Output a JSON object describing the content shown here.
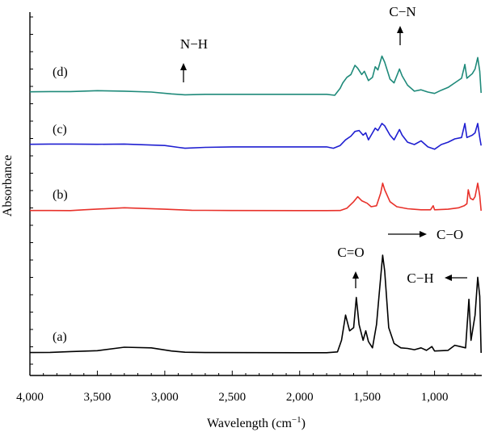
{
  "chart_data": {
    "type": "line",
    "title": "",
    "xlabel": "Wavelength (cm",
    "xlabel_sup": "−1",
    "xlabel_close": ")",
    "ylabel": "Absorbance",
    "xlim": [
      4000,
      650
    ],
    "x_reversed": true,
    "x_ticks": [
      {
        "value": 4000,
        "label": "4,000"
      },
      {
        "value": 3500,
        "label": "3,500"
      },
      {
        "value": 3000,
        "label": "3,000"
      },
      {
        "value": 2500,
        "label": "2,500"
      },
      {
        "value": 2000,
        "label": "2,000"
      },
      {
        "value": 1500,
        "label": "1,500"
      },
      {
        "value": 1000,
        "label": "1,000"
      }
    ],
    "y_ticks_labeled": false,
    "grid": false,
    "series": [
      {
        "label": "(a)",
        "color": "#000000",
        "points": [
          [
            4000,
            0.5
          ],
          [
            3850,
            0.8
          ],
          [
            3700,
            2
          ],
          [
            3500,
            3.5
          ],
          [
            3300,
            9
          ],
          [
            3100,
            8
          ],
          [
            2950,
            3
          ],
          [
            2850,
            1
          ],
          [
            2700,
            0.5
          ],
          [
            2000,
            0.3
          ],
          [
            1800,
            0.3
          ],
          [
            1720,
            1.5
          ],
          [
            1690,
            20
          ],
          [
            1660,
            60
          ],
          [
            1630,
            35
          ],
          [
            1600,
            40
          ],
          [
            1580,
            88
          ],
          [
            1560,
            45
          ],
          [
            1530,
            20
          ],
          [
            1510,
            35
          ],
          [
            1490,
            18
          ],
          [
            1460,
            8
          ],
          [
            1430,
            45
          ],
          [
            1410,
            95
          ],
          [
            1385,
            155
          ],
          [
            1370,
            130
          ],
          [
            1340,
            40
          ],
          [
            1300,
            15
          ],
          [
            1250,
            8
          ],
          [
            1200,
            7
          ],
          [
            1150,
            5
          ],
          [
            1100,
            8
          ],
          [
            1060,
            4
          ],
          [
            1020,
            10
          ],
          [
            1000,
            3
          ],
          [
            900,
            4
          ],
          [
            850,
            12
          ],
          [
            810,
            10
          ],
          [
            770,
            8
          ],
          [
            745,
            85
          ],
          [
            730,
            20
          ],
          [
            700,
            60
          ],
          [
            680,
            120
          ],
          [
            665,
            90
          ],
          [
            655,
            0
          ]
        ]
      },
      {
        "label": "(b)",
        "color": "#e8312a",
        "points": [
          [
            4000,
            0.5
          ],
          [
            3850,
            0.5
          ],
          [
            3700,
            0.3
          ],
          [
            3600,
            2
          ],
          [
            3300,
            6
          ],
          [
            3000,
            3
          ],
          [
            2800,
            1
          ],
          [
            2500,
            0.5
          ],
          [
            2000,
            0.3
          ],
          [
            1800,
            0.3
          ],
          [
            1700,
            0.5
          ],
          [
            1650,
            5
          ],
          [
            1600,
            18
          ],
          [
            1570,
            28
          ],
          [
            1540,
            20
          ],
          [
            1500,
            15
          ],
          [
            1470,
            8
          ],
          [
            1430,
            10
          ],
          [
            1400,
            35
          ],
          [
            1385,
            55
          ],
          [
            1370,
            42
          ],
          [
            1330,
            18
          ],
          [
            1280,
            8
          ],
          [
            1200,
            4
          ],
          [
            1100,
            2
          ],
          [
            1030,
            2
          ],
          [
            1010,
            10
          ],
          [
            1000,
            2
          ],
          [
            900,
            3
          ],
          [
            820,
            6
          ],
          [
            780,
            10
          ],
          [
            760,
            14
          ],
          [
            750,
            42
          ],
          [
            735,
            25
          ],
          [
            715,
            22
          ],
          [
            700,
            28
          ],
          [
            680,
            55
          ],
          [
            665,
            30
          ],
          [
            655,
            0
          ]
        ]
      },
      {
        "label": "(c)",
        "color": "#1f1fd1",
        "points": [
          [
            4000,
            0.5
          ],
          [
            3850,
            1
          ],
          [
            3700,
            1
          ],
          [
            3500,
            0.5
          ],
          [
            3300,
            1
          ],
          [
            3000,
            -2
          ],
          [
            2900,
            -6
          ],
          [
            2850,
            -8
          ],
          [
            2700,
            -6
          ],
          [
            2500,
            -5
          ],
          [
            2000,
            -5
          ],
          [
            1800,
            -5
          ],
          [
            1750,
            -8
          ],
          [
            1700,
            -2
          ],
          [
            1660,
            10
          ],
          [
            1620,
            18
          ],
          [
            1590,
            28
          ],
          [
            1560,
            30
          ],
          [
            1530,
            20
          ],
          [
            1510,
            25
          ],
          [
            1490,
            10
          ],
          [
            1470,
            20
          ],
          [
            1440,
            35
          ],
          [
            1420,
            30
          ],
          [
            1390,
            45
          ],
          [
            1370,
            40
          ],
          [
            1330,
            20
          ],
          [
            1300,
            10
          ],
          [
            1260,
            32
          ],
          [
            1240,
            20
          ],
          [
            1200,
            5
          ],
          [
            1150,
            0
          ],
          [
            1100,
            8
          ],
          [
            1050,
            -5
          ],
          [
            1000,
            -10
          ],
          [
            950,
            0
          ],
          [
            900,
            5
          ],
          [
            850,
            12
          ],
          [
            800,
            15
          ],
          [
            775,
            45
          ],
          [
            760,
            15
          ],
          [
            720,
            20
          ],
          [
            700,
            25
          ],
          [
            680,
            45
          ],
          [
            665,
            15
          ],
          [
            655,
            -2
          ]
        ]
      },
      {
        "label": "(d)",
        "color": "#1f8a7a",
        "points": [
          [
            4000,
            0.5
          ],
          [
            3850,
            1
          ],
          [
            3700,
            1
          ],
          [
            3500,
            3
          ],
          [
            3300,
            2
          ],
          [
            3100,
            0
          ],
          [
            2950,
            -4
          ],
          [
            2850,
            -6
          ],
          [
            2700,
            -5
          ],
          [
            2500,
            -5
          ],
          [
            2000,
            -5
          ],
          [
            1800,
            -5
          ],
          [
            1740,
            -7
          ],
          [
            1700,
            8
          ],
          [
            1680,
            20
          ],
          [
            1650,
            32
          ],
          [
            1620,
            38
          ],
          [
            1590,
            58
          ],
          [
            1570,
            52
          ],
          [
            1540,
            38
          ],
          [
            1520,
            45
          ],
          [
            1490,
            25
          ],
          [
            1460,
            32
          ],
          [
            1440,
            55
          ],
          [
            1420,
            48
          ],
          [
            1390,
            78
          ],
          [
            1370,
            65
          ],
          [
            1330,
            28
          ],
          [
            1300,
            20
          ],
          [
            1260,
            50
          ],
          [
            1240,
            35
          ],
          [
            1200,
            15
          ],
          [
            1150,
            2
          ],
          [
            1100,
            5
          ],
          [
            1050,
            0
          ],
          [
            1000,
            -3
          ],
          [
            950,
            4
          ],
          [
            900,
            10
          ],
          [
            850,
            20
          ],
          [
            800,
            30
          ],
          [
            775,
            60
          ],
          [
            760,
            30
          ],
          [
            720,
            40
          ],
          [
            700,
            50
          ],
          [
            680,
            75
          ],
          [
            665,
            45
          ],
          [
            655,
            -2
          ]
        ]
      }
    ],
    "annotations": [
      {
        "text": "N−H",
        "arrow": "up"
      },
      {
        "text": "C−N",
        "arrow": "up"
      },
      {
        "text": "C=O",
        "arrow": "up"
      },
      {
        "text": "C−O",
        "arrow": "right"
      },
      {
        "text": "C−H",
        "arrow": "left"
      }
    ]
  }
}
